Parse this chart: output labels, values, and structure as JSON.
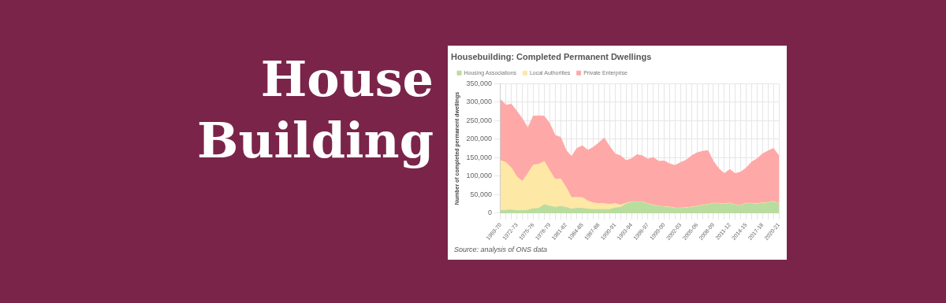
{
  "chart_data": {
    "type": "area",
    "stacked": true,
    "title": "Housebuilding: Completed Permanent Dwellings",
    "ylabel": "Number of completed permanent dwellings",
    "annotations": [
      "House Building",
      "Source: analysis of ONS data"
    ],
    "categories": [
      "1969-70",
      null,
      null,
      "1972-73",
      null,
      null,
      "1975-76",
      null,
      null,
      "1978-79",
      null,
      null,
      "1981-82",
      null,
      null,
      "1984-85",
      null,
      null,
      "1987-88",
      null,
      null,
      "1990-91",
      null,
      null,
      "1993-94",
      null,
      null,
      "1996-97",
      null,
      null,
      "1999-00",
      null,
      null,
      "2002-03",
      null,
      null,
      "2005-06",
      null,
      null,
      "2008-09",
      null,
      null,
      "2011-12",
      null,
      null,
      "2014-15",
      null,
      null,
      "2017-18",
      null,
      null,
      "2020-21"
    ],
    "series": [
      {
        "name": "Housing Associations",
        "color": "#b9dc9f",
        "values": [
          7000,
          8000,
          9000,
          7000,
          7000,
          8000,
          12000,
          13000,
          23000,
          19000,
          16000,
          18000,
          16000,
          11000,
          13000,
          13000,
          11000,
          10000,
          10000,
          10000,
          10000,
          14000,
          16000,
          25000,
          30000,
          30000,
          30000,
          25000,
          21000,
          18000,
          17000,
          16000,
          13000,
          13000,
          14000,
          16000,
          18000,
          21000,
          23000,
          26000,
          26000,
          24000,
          27000,
          22000,
          21000,
          26000,
          26000,
          25000,
          27000,
          28000,
          31000,
          26000
        ]
      },
      {
        "name": "Local Authorities",
        "color": "#fde8a5",
        "values": [
          135000,
          129000,
          113000,
          91000,
          79000,
          99000,
          118000,
          119000,
          117000,
          96000,
          75000,
          75000,
          54000,
          31000,
          30000,
          29000,
          22000,
          18000,
          16000,
          16000,
          14000,
          12000,
          6000,
          2000,
          1000,
          1000,
          1000,
          1000,
          1000,
          1000,
          1000,
          1000,
          1000,
          1000,
          1000,
          1000,
          1000,
          1000,
          1000,
          1000,
          1000,
          1000,
          1000,
          1000,
          1000,
          1000,
          1000,
          1000,
          1000,
          1000,
          1000,
          1000
        ]
      },
      {
        "name": "Private Enterprise",
        "color": "#ffa8a8",
        "values": [
          165000,
          155000,
          172000,
          177000,
          169000,
          123000,
          132000,
          131000,
          122000,
          127000,
          119000,
          112000,
          100000,
          111000,
          132000,
          140000,
          137000,
          150000,
          164000,
          177000,
          156000,
          134000,
          133000,
          115000,
          116000,
          127000,
          124000,
          120000,
          128000,
          121000,
          123000,
          116000,
          115000,
          123000,
          128000,
          138000,
          144000,
          145000,
          145000,
          113000,
          93000,
          82000,
          90000,
          84000,
          89000,
          95000,
          111000,
          121000,
          132000,
          139000,
          143000,
          128000
        ]
      }
    ],
    "ylim": [
      0,
      350000
    ],
    "yticks": [
      0,
      {
        "value": 50000,
        "label": "50,000"
      },
      {
        "value": 100000,
        "label": "100,000"
      },
      {
        "value": 150000,
        "label": "150,000"
      },
      {
        "value": 200000,
        "label": "200,000"
      },
      {
        "value": 250000,
        "label": "250,000"
      },
      {
        "value": 300000,
        "label": "300,000"
      },
      {
        "value": 350000,
        "label": "350,000"
      }
    ],
    "grid": true,
    "legend": "top left",
    "marker": "none"
  }
}
